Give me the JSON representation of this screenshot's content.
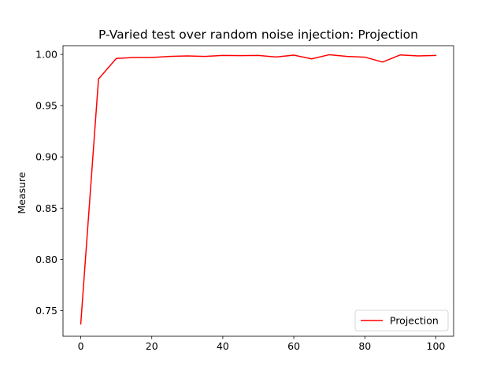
{
  "chart_data": {
    "type": "line",
    "title": "P-Varied test over random noise injection: Projection",
    "xlabel": "",
    "ylabel": "Measure",
    "xlim": [
      -5,
      105
    ],
    "ylim": [
      0.725,
      1.0085
    ],
    "xticks": [
      0,
      20,
      40,
      60,
      80,
      100
    ],
    "yticks": [
      0.75,
      0.8,
      0.85,
      0.9,
      0.95,
      1.0
    ],
    "ytick_labels": [
      "0.75",
      "0.80",
      "0.85",
      "0.90",
      "0.95",
      "1.00"
    ],
    "grid": false,
    "legend_position": "lower-right",
    "series": [
      {
        "name": "Projection",
        "color": "#ff0000",
        "x": [
          0,
          5,
          10,
          15,
          20,
          25,
          30,
          35,
          40,
          45,
          50,
          55,
          60,
          65,
          70,
          75,
          80,
          85,
          90,
          95,
          100
        ],
        "y": [
          0.737,
          0.976,
          0.996,
          0.997,
          0.997,
          0.998,
          0.9985,
          0.998,
          0.999,
          0.9988,
          0.999,
          0.9975,
          0.9993,
          0.9956,
          0.9997,
          0.998,
          0.9973,
          0.9925,
          0.9995,
          0.9985,
          0.999
        ]
      }
    ]
  }
}
